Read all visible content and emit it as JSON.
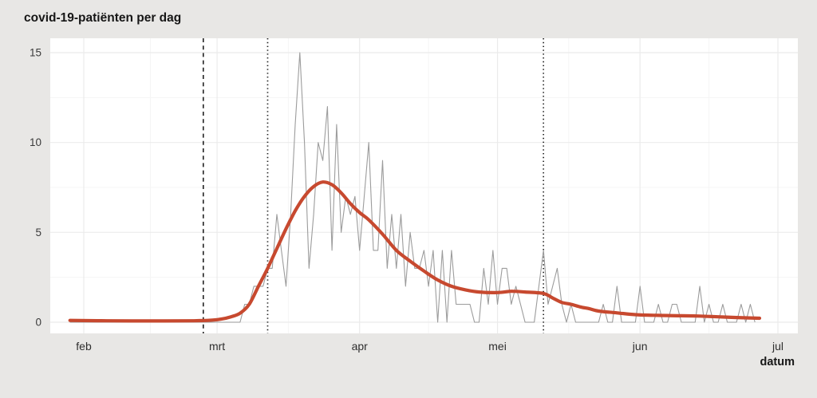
{
  "title": "covid-19-patiënten per dag",
  "x_axis_title": "datum",
  "chart_data": {
    "type": "line",
    "title": "covid-19-patiënten per dag",
    "xlabel": "datum",
    "ylabel": "",
    "legend": "none",
    "grid": true,
    "ylim": [
      0,
      15
    ],
    "y_ticks": [
      0,
      5,
      10,
      15
    ],
    "y_minor_ticks": [
      2.5,
      7.5,
      12.5
    ],
    "x_tick_labels": [
      "feb",
      "mrt",
      "apr",
      "mei",
      "jun",
      "jul"
    ],
    "x_tick_days": [
      0,
      29,
      60,
      90,
      121,
      151
    ],
    "x_minor_days": [
      14.5,
      44.5,
      75,
      105.5,
      136
    ],
    "event_markers": [
      {
        "day": 26,
        "style": "dashed"
      },
      {
        "day": 40,
        "style": "dotted"
      },
      {
        "day": 100,
        "style": "dotted"
      }
    ],
    "series": [
      {
        "id": "daily-patients",
        "color": "#9c9c9c",
        "start_day": -3,
        "values": [
          0,
          0,
          0,
          0,
          0,
          0,
          0,
          0,
          0,
          0,
          0,
          0,
          0,
          0,
          0,
          0,
          0,
          0,
          0,
          0,
          0,
          0,
          0,
          0,
          0,
          0,
          0,
          0,
          0,
          0,
          0,
          0,
          0,
          0,
          0,
          0,
          0,
          0,
          1,
          1,
          2,
          2,
          2,
          3,
          3,
          6,
          4,
          2,
          6,
          11,
          15,
          10,
          3,
          6,
          10,
          9,
          12,
          4,
          11,
          5,
          7,
          6,
          7,
          4,
          7,
          10,
          4,
          4,
          9,
          3,
          6,
          3,
          6,
          2,
          5,
          3,
          3,
          4,
          2,
          4,
          0,
          4,
          0,
          4,
          1,
          1,
          1,
          1,
          0,
          0,
          3,
          1,
          4,
          1,
          3,
          3,
          1,
          2,
          1,
          0,
          0,
          0,
          2,
          4,
          1,
          2,
          3,
          1,
          0,
          1,
          0,
          0,
          0,
          0,
          0,
          0,
          1,
          0,
          0,
          2,
          0,
          0,
          0,
          0,
          2,
          0,
          0,
          0,
          1,
          0,
          0,
          1,
          1,
          0,
          0,
          0,
          0,
          2,
          0,
          1,
          0,
          0,
          1,
          0,
          0,
          0,
          1,
          0,
          1,
          0
        ]
      },
      {
        "id": "trend",
        "color": "#c7492f",
        "points": [
          [
            -3,
            0.1
          ],
          [
            5,
            0.08
          ],
          [
            15,
            0.07
          ],
          [
            24,
            0.08
          ],
          [
            28,
            0.12
          ],
          [
            30,
            0.18
          ],
          [
            32,
            0.3
          ],
          [
            34,
            0.5
          ],
          [
            36,
            1.0
          ],
          [
            38,
            2.0
          ],
          [
            40,
            3.0
          ],
          [
            42,
            4.1
          ],
          [
            44,
            5.2
          ],
          [
            46,
            6.2
          ],
          [
            48,
            7.0
          ],
          [
            50,
            7.55
          ],
          [
            52,
            7.8
          ],
          [
            54,
            7.65
          ],
          [
            56,
            7.2
          ],
          [
            58,
            6.6
          ],
          [
            60,
            6.1
          ],
          [
            62,
            5.7
          ],
          [
            65,
            4.9
          ],
          [
            68,
            4.0
          ],
          [
            71,
            3.4
          ],
          [
            74,
            2.85
          ],
          [
            77,
            2.35
          ],
          [
            80,
            2.0
          ],
          [
            83,
            1.8
          ],
          [
            86,
            1.68
          ],
          [
            90,
            1.65
          ],
          [
            93,
            1.72
          ],
          [
            96,
            1.68
          ],
          [
            100,
            1.6
          ],
          [
            102,
            1.35
          ],
          [
            104,
            1.1
          ],
          [
            106,
            1.0
          ],
          [
            108,
            0.85
          ],
          [
            110,
            0.75
          ],
          [
            112,
            0.62
          ],
          [
            116,
            0.52
          ],
          [
            120,
            0.42
          ],
          [
            125,
            0.38
          ],
          [
            130,
            0.36
          ],
          [
            134,
            0.34
          ],
          [
            138,
            0.3
          ],
          [
            142,
            0.26
          ],
          [
            147,
            0.22
          ]
        ]
      }
    ]
  },
  "colors": {
    "page_background": "#e8e7e5",
    "plot_background": "#ffffff",
    "grid_major": "#ebebeb",
    "grid_minor": "#f5f5f5",
    "daily_line": "#9c9c9c",
    "trend_line": "#c7492f",
    "marker_line": "#222222",
    "text": "#161616"
  }
}
